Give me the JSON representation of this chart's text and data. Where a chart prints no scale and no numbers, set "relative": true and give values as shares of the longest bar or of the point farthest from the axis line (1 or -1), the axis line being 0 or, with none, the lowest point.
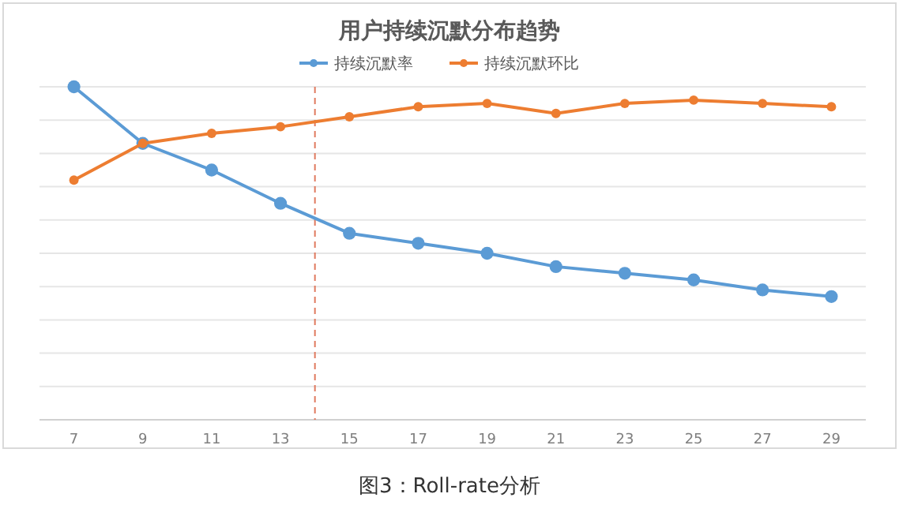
{
  "chart_data": {
    "type": "line",
    "title": "用户持续沉默分布趋势",
    "relative": true,
    "x": [
      7,
      9,
      11,
      13,
      15,
      17,
      19,
      21,
      23,
      25,
      27,
      29
    ],
    "xlim": [
      6,
      30
    ],
    "xticks": [
      7,
      9,
      11,
      13,
      15,
      17,
      19,
      21,
      23,
      25,
      27,
      29
    ],
    "series": [
      {
        "name": "持续沉默率",
        "color": "#5b9bd5",
        "values": [
          1,
          0.83,
          0.75,
          0.65,
          0.56,
          0.53,
          0.5,
          0.46,
          0.44,
          0.42,
          0.39,
          0.37
        ]
      },
      {
        "name": "持续沉默环比",
        "color": "#ed7d31",
        "values": [
          0.72,
          0.83,
          0.86,
          0.88,
          0.91,
          0.94,
          0.95,
          0.92,
          0.95,
          0.96,
          0.95,
          0.94
        ]
      }
    ],
    "ref_lines": [
      {
        "axis": "x",
        "value": 14,
        "color": "#e07a5f",
        "line_style": "dashed"
      }
    ],
    "grid": "y",
    "legend": "top",
    "marker": "circle",
    "line_style": "solid",
    "annotations": [
      "图3：Roll-rate分析"
    ]
  }
}
